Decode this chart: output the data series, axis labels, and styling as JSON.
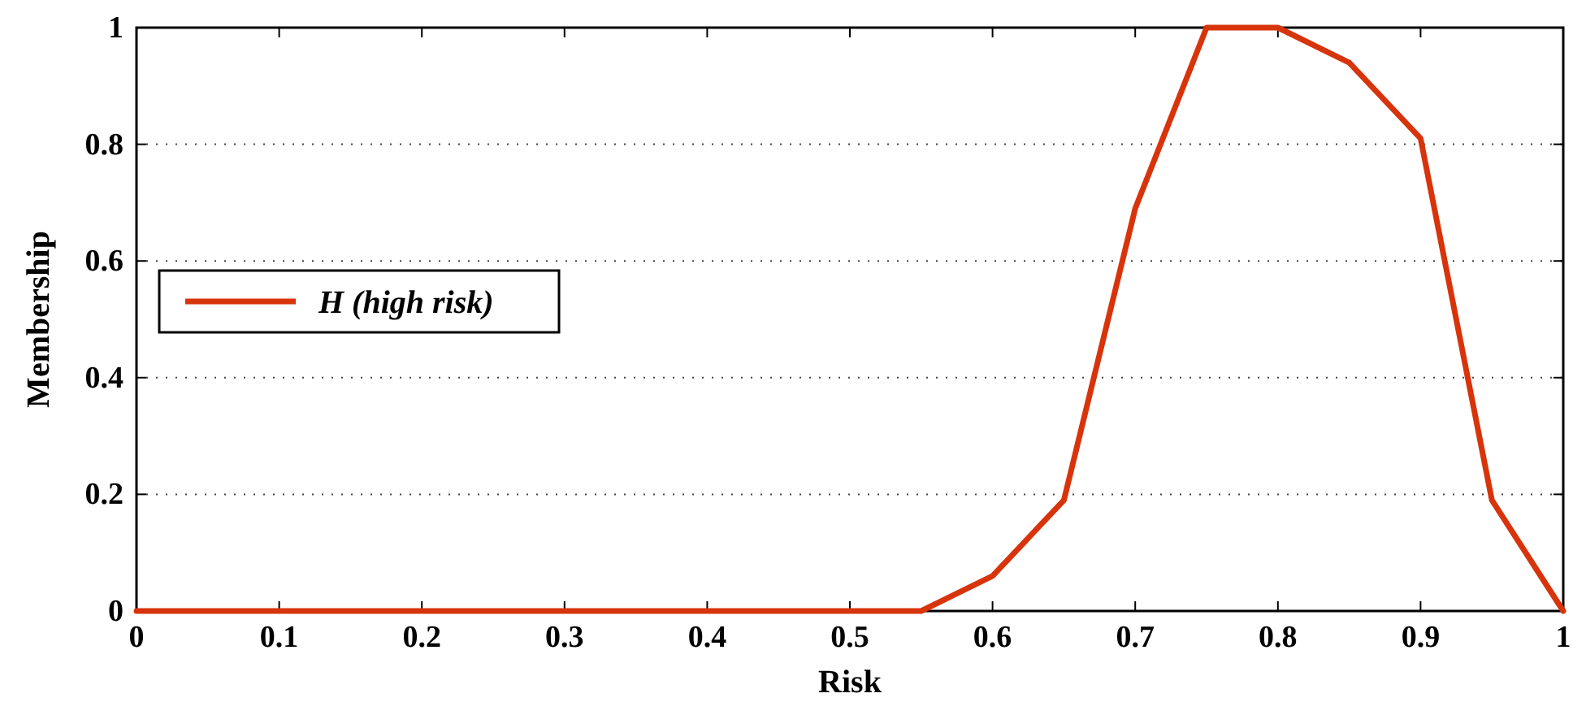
{
  "chart_data": {
    "type": "line",
    "xlabel": "Risk",
    "ylabel": "Membership",
    "x": [
      0,
      0.55,
      0.6,
      0.65,
      0.7,
      0.75,
      0.8,
      0.85,
      0.9,
      0.95,
      1
    ],
    "series": [
      {
        "name": "H (high risk)",
        "color": "#d8340c",
        "values": [
          0,
          0,
          0.06,
          0.19,
          0.69,
          1,
          1,
          0.94,
          0.81,
          0.19,
          0
        ]
      }
    ],
    "xlim": [
      0,
      1
    ],
    "xticks": [
      0,
      0.1,
      0.2,
      0.3,
      0.4,
      0.5,
      0.6,
      0.7,
      0.8,
      0.9,
      1
    ],
    "ylim": [
      0,
      1
    ],
    "yticks": [
      0,
      0.2,
      0.4,
      0.6,
      0.8,
      1
    ],
    "grid": "y",
    "legend": "left",
    "marker": "none",
    "line_style": "solid"
  }
}
